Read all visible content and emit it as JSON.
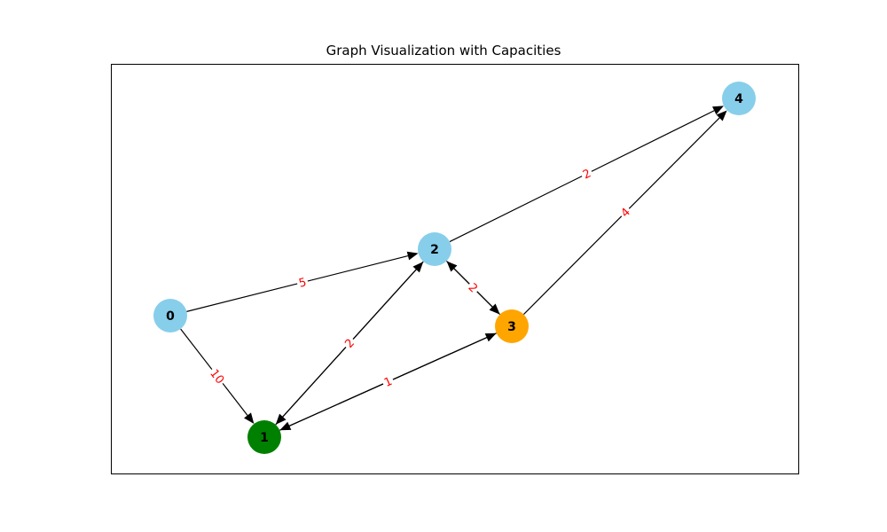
{
  "title": "Graph Visualization with Capacities",
  "colors": {
    "edge": "#000000",
    "edge_label": "#ff0000",
    "frame": "#000000"
  },
  "nodes": [
    {
      "id": "0",
      "label": "0",
      "color": "#87ceeb"
    },
    {
      "id": "1",
      "label": "1",
      "color": "#008000"
    },
    {
      "id": "2",
      "label": "2",
      "color": "#87ceeb"
    },
    {
      "id": "3",
      "label": "3",
      "color": "#ffa500"
    },
    {
      "id": "4",
      "label": "4",
      "color": "#87ceeb"
    }
  ],
  "edges": [
    {
      "from": "0",
      "to": "2",
      "capacity": "5"
    },
    {
      "from": "0",
      "to": "1",
      "capacity": "10"
    },
    {
      "from": "1",
      "to": "2",
      "capacity": "2"
    },
    {
      "from": "2",
      "to": "1",
      "capacity": "2"
    },
    {
      "from": "1",
      "to": "3",
      "capacity": "1"
    },
    {
      "from": "3",
      "to": "1",
      "capacity": "1"
    },
    {
      "from": "2",
      "to": "3",
      "capacity": "2"
    },
    {
      "from": "3",
      "to": "2",
      "capacity": "2"
    },
    {
      "from": "2",
      "to": "4",
      "capacity": "2"
    },
    {
      "from": "3",
      "to": "4",
      "capacity": "4"
    }
  ]
}
